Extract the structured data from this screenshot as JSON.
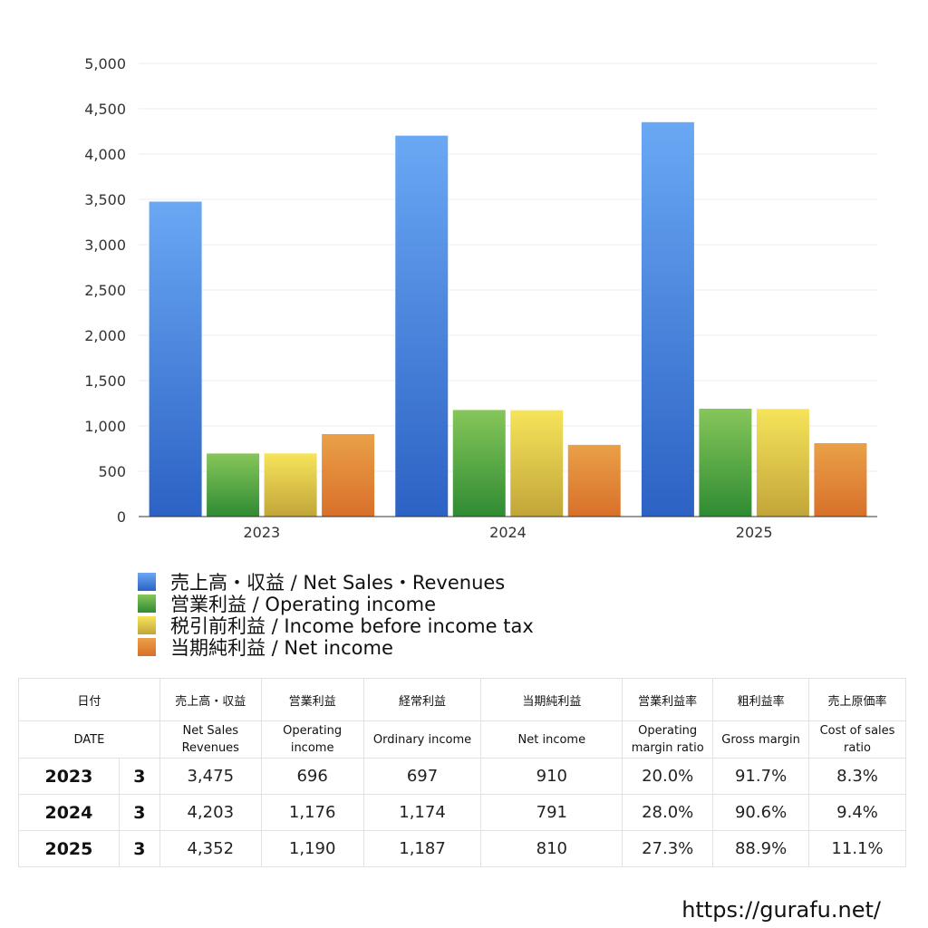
{
  "chart_data": {
    "type": "bar",
    "categories": [
      "2023",
      "2024",
      "2025"
    ],
    "series": [
      {
        "name": "売上高・収益 / Net Sales・Revenues",
        "values": [
          3475,
          4203,
          4352
        ],
        "color_top": "#6aa8f4",
        "color_bottom": "#2c62c4"
      },
      {
        "name": "営業利益 / Operating income",
        "values": [
          696,
          1176,
          1190
        ],
        "color_top": "#86c65a",
        "color_bottom": "#2f8b33"
      },
      {
        "name": "税引前利益 / Income before income tax",
        "values": [
          697,
          1174,
          1187
        ],
        "color_top": "#f6e45a",
        "color_bottom": "#c2a53a"
      },
      {
        "name": "当期純利益 / Net income",
        "values": [
          910,
          791,
          810
        ],
        "color_top": "#eaa048",
        "color_bottom": "#d8702a"
      }
    ],
    "y_ticks": [
      "0",
      "500",
      "1,000",
      "1,500",
      "2,000",
      "2,500",
      "3,000",
      "3,500",
      "4,000",
      "4,500",
      "5,000"
    ],
    "ylim": [
      0,
      5000
    ],
    "grid": true,
    "legend_position": "bottom-left"
  },
  "table": {
    "header_jp": [
      "日付",
      "売上高・収益",
      "営業利益",
      "経常利益",
      "当期純利益",
      "営業利益率",
      "粗利益率",
      "売上原価率"
    ],
    "header_en": [
      "DATE",
      "Net Sales\nRevenues",
      "Operating\nincome",
      "Ordinary income",
      "Net income",
      "Operating\nmargin ratio",
      "Gross margin",
      "Cost of sales\nratio"
    ],
    "rows": [
      {
        "year": "2023",
        "month": "3",
        "sales": "3,475",
        "operating": "696",
        "ordinary": "697",
        "net": "910",
        "op_margin": "20.0%",
        "gross_margin": "91.7%",
        "cost_ratio": "8.3%"
      },
      {
        "year": "2024",
        "month": "3",
        "sales": "4,203",
        "operating": "1,176",
        "ordinary": "1,174",
        "net": "791",
        "op_margin": "28.0%",
        "gross_margin": "90.6%",
        "cost_ratio": "9.4%"
      },
      {
        "year": "2025",
        "month": "3",
        "sales": "4,352",
        "operating": "1,190",
        "ordinary": "1,187",
        "net": "810",
        "op_margin": "27.3%",
        "gross_margin": "88.9%",
        "cost_ratio": "11.1%"
      }
    ]
  },
  "footer": {
    "url": "https://gurafu.net/"
  }
}
